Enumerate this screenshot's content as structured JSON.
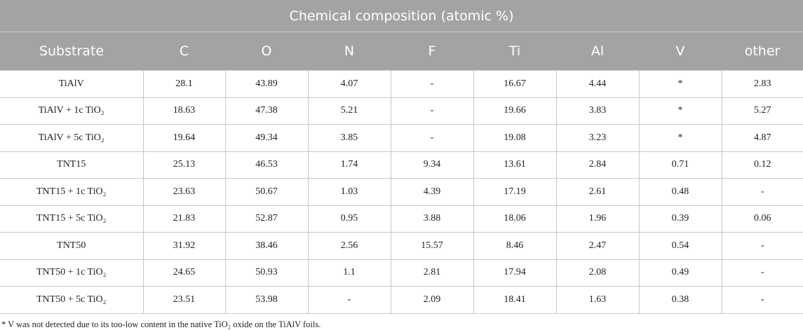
{
  "table": {
    "title": "Chemical composition (atomic %)",
    "columns": [
      "Substrate",
      "C",
      "O",
      "N",
      "F",
      "Ti",
      "Al",
      "V",
      "other"
    ],
    "rows": [
      [
        "TiAlV",
        "28.1",
        "43.89",
        "4.07",
        "-",
        "16.67",
        "4.44",
        "*",
        "2.83"
      ],
      [
        "TiAlV + 1c TiO₂",
        "18.63",
        "47.38",
        "5.21",
        "-",
        "19.66",
        "3.83",
        "*",
        "5.27"
      ],
      [
        "TiAlV + 5c TiO₂",
        "19.64",
        "49.34",
        "3.85",
        "-",
        "19.08",
        "3.23",
        "*",
        "4.87"
      ],
      [
        "TNT15",
        "25.13",
        "46.53",
        "1.74",
        "9.34",
        "13.61",
        "2.84",
        "0.71",
        "0.12"
      ],
      [
        "TNT15 + 1c TiO₂",
        "23.63",
        "50.67",
        "1.03",
        "4.39",
        "17.19",
        "2.61",
        "0.48",
        "-"
      ],
      [
        "TNT15 + 5c TiO₂",
        "21.83",
        "52.87",
        "0.95",
        "3.88",
        "18.06",
        "1.96",
        "0.39",
        "0.06"
      ],
      [
        "TNT50",
        "31.92",
        "38.46",
        "2.56",
        "15.57",
        "8.46",
        "2.47",
        "0.54",
        "-"
      ],
      [
        "TNT50 + 1c TiO₂",
        "24.65",
        "50.93",
        "1.1",
        "2.81",
        "17.94",
        "2.08",
        "0.49",
        "-"
      ],
      [
        "TNT50 + 5c TiO₂",
        "23.51",
        "53.98",
        "-",
        "2.09",
        "18.41",
        "1.63",
        "0.38",
        "-"
      ]
    ],
    "footnote": "* V was not detected due to its too-low content in the native TiO₂ oxide on the TiAlV foils."
  }
}
